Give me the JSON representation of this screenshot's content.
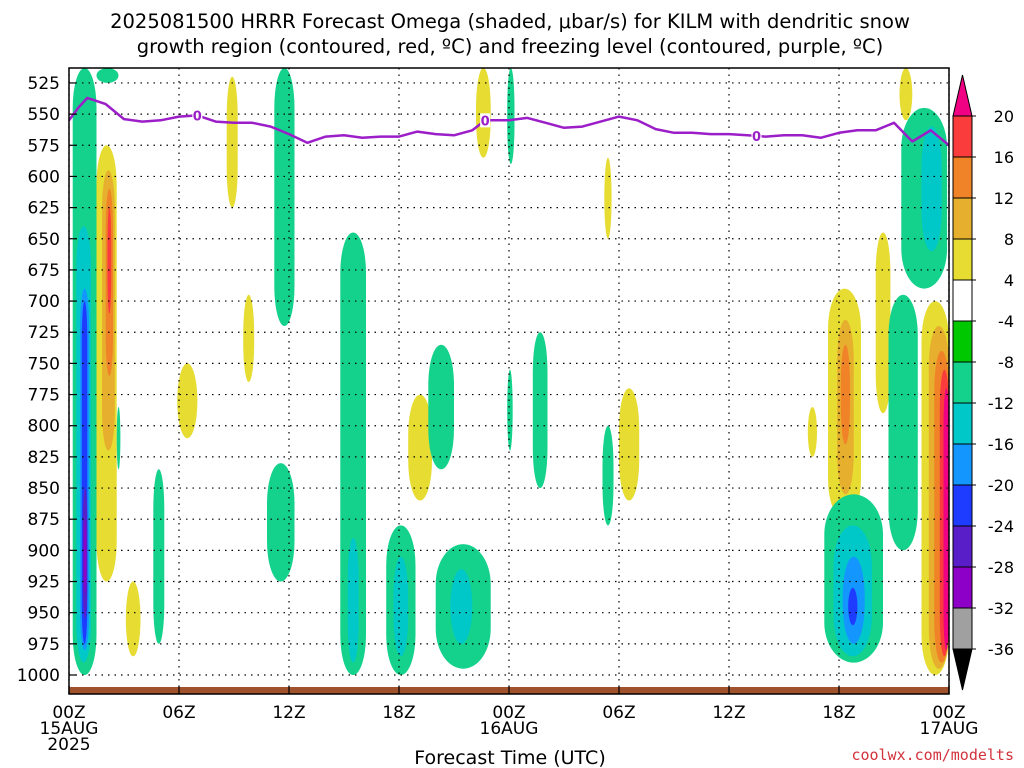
{
  "title_line1": "2025081500 HRRR Forecast Omega (shaded, μbar/s) for KILM with dendritic snow",
  "title_line2": "growth region (contoured, red, ºC) and freezing level (contoured, purple, ºC)",
  "xlabel": "Forecast Time (UTC)",
  "credit": "coolwx.com/modelts",
  "chart_data": {
    "type": "heatmap",
    "title": "2025081500 HRRR Forecast Omega (shaded, μbar/s) for KILM with dendritic snow growth region (contoured, red, ºC) and freezing level (contoured, purple, ºC)",
    "xlabel": "Forecast Time (UTC)",
    "ylabel": "",
    "x_range_hours": [
      0,
      48
    ],
    "y_range_hPa": [
      1010,
      513
    ],
    "grid": true,
    "x_ticks": [
      {
        "hour": 0,
        "lines": [
          "00Z",
          "15AUG",
          "2025"
        ]
      },
      {
        "hour": 6,
        "lines": [
          "06Z"
        ]
      },
      {
        "hour": 12,
        "lines": [
          "12Z"
        ]
      },
      {
        "hour": 18,
        "lines": [
          "18Z"
        ]
      },
      {
        "hour": 24,
        "lines": [
          "00Z",
          "16AUG"
        ]
      },
      {
        "hour": 30,
        "lines": [
          "06Z"
        ]
      },
      {
        "hour": 36,
        "lines": [
          "12Z"
        ]
      },
      {
        "hour": 42,
        "lines": [
          "18Z"
        ]
      },
      {
        "hour": 48,
        "lines": [
          "00Z",
          "17AUG"
        ]
      }
    ],
    "y_ticks": [
      "525",
      "550",
      "575",
      "600",
      "625",
      "650",
      "675",
      "700",
      "725",
      "750",
      "775",
      "800",
      "825",
      "850",
      "875",
      "900",
      "925",
      "950",
      "975",
      "1000"
    ],
    "colorbar": {
      "bins": [
        {
          "color": "#000000"
        },
        {
          "color": "#a0a0a0"
        },
        {
          "color": "#8c00c8"
        },
        {
          "color": "#5a1ec8"
        },
        {
          "color": "#1e3cff"
        },
        {
          "color": "#1496ff"
        },
        {
          "color": "#00c8c8"
        },
        {
          "color": "#14d28c"
        },
        {
          "color": "#00c800"
        },
        {
          "color": "#ffffff"
        },
        {
          "color": "#e6dc32"
        },
        {
          "color": "#e6af2d"
        },
        {
          "color": "#f08228"
        },
        {
          "color": "#fa3c3c"
        },
        {
          "color": "#f00082"
        }
      ],
      "tick_labels": [
        "-36",
        "-32",
        "-28",
        "-24",
        "-20",
        "-16",
        "-12",
        "-8",
        "-4",
        "4",
        "8",
        "12",
        "16",
        "20"
      ]
    },
    "freezing_level": {
      "label": "0",
      "label_hours": [
        7,
        22.7,
        37.5
      ],
      "points": [
        [
          0,
          555
        ],
        [
          0.5,
          545
        ],
        [
          1,
          537
        ],
        [
          2,
          542
        ],
        [
          3,
          554
        ],
        [
          4,
          556
        ],
        [
          5,
          555
        ],
        [
          6,
          552
        ],
        [
          7,
          551
        ],
        [
          8,
          556
        ],
        [
          9,
          557
        ],
        [
          10,
          557
        ],
        [
          11,
          560
        ],
        [
          12,
          566
        ],
        [
          13,
          573
        ],
        [
          14,
          568
        ],
        [
          15,
          567
        ],
        [
          16,
          569
        ],
        [
          17,
          568
        ],
        [
          18,
          568
        ],
        [
          19,
          564
        ],
        [
          20,
          566
        ],
        [
          21,
          567
        ],
        [
          22,
          563
        ],
        [
          22.7,
          555
        ],
        [
          24,
          555
        ],
        [
          25,
          553
        ],
        [
          26,
          557
        ],
        [
          27,
          561
        ],
        [
          28,
          560
        ],
        [
          29,
          556
        ],
        [
          30,
          552
        ],
        [
          31,
          555
        ],
        [
          32,
          562
        ],
        [
          33,
          565
        ],
        [
          34,
          565
        ],
        [
          35,
          566
        ],
        [
          36,
          566
        ],
        [
          37,
          567
        ],
        [
          38,
          568
        ],
        [
          39,
          567
        ],
        [
          40,
          567
        ],
        [
          41,
          569
        ],
        [
          42,
          565
        ],
        [
          43,
          563
        ],
        [
          44,
          563
        ],
        [
          45,
          557
        ],
        [
          46,
          572
        ],
        [
          47,
          563
        ],
        [
          48,
          575
        ]
      ]
    },
    "omega_regions": [
      {
        "cls": -8,
        "hours": [
          0.2,
          1.5
        ],
        "p": [
          513,
          1000
        ]
      },
      {
        "cls": -8,
        "hours": [
          1.5,
          2.7
        ],
        "p": [
          513,
          525
        ]
      },
      {
        "cls": -12,
        "hours": [
          0.4,
          1.2
        ],
        "p": [
          640,
          990
        ]
      },
      {
        "cls": -16,
        "hours": [
          0.6,
          1.1
        ],
        "p": [
          690,
          980
        ]
      },
      {
        "cls": -20,
        "hours": [
          0.7,
          1.0
        ],
        "p": [
          700,
          975
        ]
      },
      {
        "cls": -24,
        "hours": [
          0.75,
          1.0
        ],
        "p": [
          850,
          955
        ]
      },
      {
        "cls": -28,
        "hours": [
          0.8,
          0.95
        ],
        "p": [
          875,
          935
        ]
      },
      {
        "cls": 4,
        "hours": [
          1.5,
          2.6
        ],
        "p": [
          575,
          925
        ]
      },
      {
        "cls": 8,
        "hours": [
          1.8,
          2.5
        ],
        "p": [
          595,
          820
        ]
      },
      {
        "cls": 12,
        "hours": [
          2.0,
          2.4
        ],
        "p": [
          610,
          760
        ]
      },
      {
        "cls": 16,
        "hours": [
          2.1,
          2.3
        ],
        "p": [
          625,
          710
        ]
      },
      {
        "cls": -8,
        "hours": [
          2.6,
          2.8
        ],
        "p": [
          785,
          835
        ]
      },
      {
        "cls": 4,
        "hours": [
          3.1,
          3.9
        ],
        "p": [
          925,
          985
        ]
      },
      {
        "cls": -8,
        "hours": [
          4.6,
          5.2
        ],
        "p": [
          835,
          975
        ]
      },
      {
        "cls": 4,
        "hours": [
          5.9,
          7.0
        ],
        "p": [
          750,
          810
        ]
      },
      {
        "cls": 4,
        "hours": [
          8.6,
          9.2
        ],
        "p": [
          520,
          625
        ]
      },
      {
        "cls": 4,
        "hours": [
          9.5,
          10.1
        ],
        "p": [
          695,
          765
        ]
      },
      {
        "cls": -8,
        "hours": [
          11.2,
          12.3
        ],
        "p": [
          513,
          720
        ]
      },
      {
        "cls": -8,
        "hours": [
          10.8,
          12.3
        ],
        "p": [
          830,
          925
        ]
      },
      {
        "cls": -8,
        "hours": [
          14.8,
          16.2
        ],
        "p": [
          645,
          1000
        ]
      },
      {
        "cls": -12,
        "hours": [
          15.2,
          15.8
        ],
        "p": [
          890,
          990
        ]
      },
      {
        "cls": -8,
        "hours": [
          17.3,
          18.9
        ],
        "p": [
          880,
          1000
        ]
      },
      {
        "cls": -12,
        "hours": [
          17.7,
          18.5
        ],
        "p": [
          905,
          985
        ]
      },
      {
        "cls": 4,
        "hours": [
          18.5,
          19.8
        ],
        "p": [
          775,
          860
        ]
      },
      {
        "cls": -8,
        "hours": [
          19.6,
          21.0
        ],
        "p": [
          735,
          835
        ]
      },
      {
        "cls": -8,
        "hours": [
          20.0,
          23.0
        ],
        "p": [
          895,
          995
        ]
      },
      {
        "cls": -12,
        "hours": [
          20.8,
          22.0
        ],
        "p": [
          915,
          975
        ]
      },
      {
        "cls": 4,
        "hours": [
          22.2,
          23.0
        ],
        "p": [
          513,
          585
        ]
      },
      {
        "cls": -8,
        "hours": [
          23.9,
          24.3
        ],
        "p": [
          513,
          590
        ]
      },
      {
        "cls": -8,
        "hours": [
          23.9,
          24.2
        ],
        "p": [
          755,
          820
        ]
      },
      {
        "cls": -8,
        "hours": [
          25.3,
          26.1
        ],
        "p": [
          725,
          850
        ]
      },
      {
        "cls": 4,
        "hours": [
          29.2,
          29.6
        ],
        "p": [
          585,
          650
        ]
      },
      {
        "cls": -8,
        "hours": [
          29.1,
          29.7
        ],
        "p": [
          800,
          880
        ]
      },
      {
        "cls": 4,
        "hours": [
          30.0,
          31.1
        ],
        "p": [
          770,
          860
        ]
      },
      {
        "cls": 4,
        "hours": [
          40.3,
          40.8
        ],
        "p": [
          785,
          825
        ]
      },
      {
        "cls": 4,
        "hours": [
          41.4,
          43.2
        ],
        "p": [
          690,
          875
        ]
      },
      {
        "cls": 8,
        "hours": [
          41.9,
          42.8
        ],
        "p": [
          715,
          855
        ]
      },
      {
        "cls": 12,
        "hours": [
          42.1,
          42.6
        ],
        "p": [
          735,
          815
        ]
      },
      {
        "cls": -8,
        "hours": [
          41.2,
          44.4
        ],
        "p": [
          855,
          990
        ]
      },
      {
        "cls": -12,
        "hours": [
          41.7,
          43.8
        ],
        "p": [
          880,
          985
        ]
      },
      {
        "cls": -16,
        "hours": [
          42.2,
          43.4
        ],
        "p": [
          905,
          975
        ]
      },
      {
        "cls": -20,
        "hours": [
          42.5,
          43.0
        ],
        "p": [
          930,
          960
        ]
      },
      {
        "cls": 4,
        "hours": [
          44.0,
          44.8
        ],
        "p": [
          645,
          790
        ]
      },
      {
        "cls": 4,
        "hours": [
          45.3,
          46.0
        ],
        "p": [
          513,
          555
        ]
      },
      {
        "cls": -8,
        "hours": [
          45.4,
          47.9
        ],
        "p": [
          545,
          690
        ]
      },
      {
        "cls": -12,
        "hours": [
          46.5,
          47.6
        ],
        "p": [
          560,
          660
        ]
      },
      {
        "cls": -8,
        "hours": [
          44.7,
          46.3
        ],
        "p": [
          695,
          900
        ]
      },
      {
        "cls": 4,
        "hours": [
          46.5,
          48.0
        ],
        "p": [
          700,
          1000
        ]
      },
      {
        "cls": 8,
        "hours": [
          46.9,
          48.0
        ],
        "p": [
          720,
          995
        ]
      },
      {
        "cls": 12,
        "hours": [
          47.2,
          48.0
        ],
        "p": [
          740,
          990
        ]
      },
      {
        "cls": 16,
        "hours": [
          47.5,
          48.0
        ],
        "p": [
          755,
          985
        ]
      },
      {
        "cls": 20,
        "hours": [
          47.7,
          48.0
        ],
        "p": [
          770,
          980
        ]
      }
    ]
  }
}
